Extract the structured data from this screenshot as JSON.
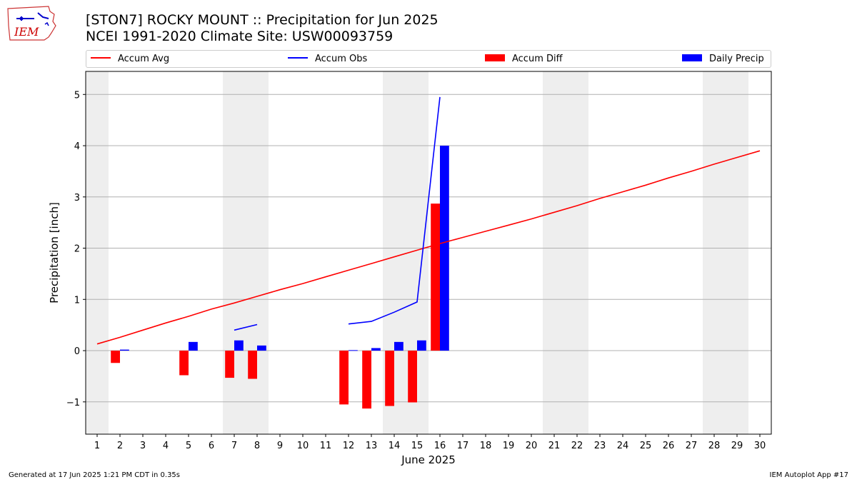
{
  "header": {
    "title_line1": "[STON7] ROCKY MOUNT :: Precipitation for Jun 2025",
    "title_line2": "NCEI 1991-2020 Climate Site: USW00093759",
    "logo_text": "IEM"
  },
  "legend": [
    {
      "label": "Accum Avg",
      "color": "#ff0000",
      "kind": "line"
    },
    {
      "label": "Accum Obs",
      "color": "#0000ff",
      "kind": "line"
    },
    {
      "label": "Accum Diff",
      "color": "#ff0000",
      "kind": "box"
    },
    {
      "label": "Daily Precip",
      "color": "#0000ff",
      "kind": "box"
    }
  ],
  "footer": {
    "generated": "Generated at 17 Jun 2025 1:21 PM CDT in 0.35s",
    "app": "IEM Autoplot App #17"
  },
  "colors": {
    "accum_avg": "#ff0000",
    "accum_obs": "#0000ff",
    "accum_diff": "#ff0000",
    "daily_precip": "#0000ff",
    "weekend_shade": "#eeeeee",
    "grid": "#b0b0b0"
  },
  "chart_data": {
    "type": "bar",
    "xlabel": "June 2025",
    "ylabel": "Precipitation [inch]",
    "x": [
      1,
      2,
      3,
      4,
      5,
      6,
      7,
      8,
      9,
      10,
      11,
      12,
      13,
      14,
      15,
      16,
      17,
      18,
      19,
      20,
      21,
      22,
      23,
      24,
      25,
      26,
      27,
      28,
      29,
      30
    ],
    "x_ticks": [
      "1",
      "2",
      "3",
      "4",
      "5",
      "6",
      "7",
      "8",
      "9",
      "10",
      "11",
      "12",
      "13",
      "14",
      "15",
      "16",
      "17",
      "18",
      "19",
      "20",
      "21",
      "22",
      "23",
      "24",
      "25",
      "26",
      "27",
      "28",
      "29",
      "30"
    ],
    "xlim": [
      0.5,
      30.5
    ],
    "ylim": [
      -1.63,
      5.45
    ],
    "y_ticks": [
      -1,
      0,
      1,
      2,
      3,
      4,
      5
    ],
    "y_tick_labels": [
      "−1",
      "0",
      "1",
      "2",
      "3",
      "4",
      "5"
    ],
    "grid": "y-major",
    "weekend_days": [
      1,
      7,
      8,
      14,
      15,
      21,
      22,
      28,
      29
    ],
    "series": [
      {
        "name": "Accum Avg",
        "type": "line",
        "values": [
          0.13,
          0.26,
          0.4,
          0.54,
          0.67,
          0.81,
          0.93,
          1.06,
          1.19,
          1.31,
          1.44,
          1.57,
          1.7,
          1.83,
          1.96,
          2.09,
          2.21,
          2.33,
          2.45,
          2.57,
          2.7,
          2.83,
          2.97,
          3.1,
          3.23,
          3.37,
          3.5,
          3.64,
          3.77,
          3.9
        ]
      },
      {
        "name": "Accum Obs",
        "type": "line",
        "values": [
          null,
          null,
          null,
          null,
          null,
          null,
          0.4,
          0.51,
          null,
          null,
          null,
          0.52,
          0.57,
          0.75,
          0.95,
          4.95,
          null,
          null,
          null,
          null,
          null,
          null,
          null,
          null,
          null,
          null,
          null,
          null,
          null,
          null
        ]
      },
      {
        "name": "Accum Diff",
        "type": "bar",
        "values": [
          0,
          -0.24,
          0,
          0,
          -0.48,
          0,
          -0.53,
          -0.55,
          0,
          0,
          0,
          -1.05,
          -1.13,
          -1.08,
          -1.01,
          2.87,
          0,
          0,
          0,
          0,
          0,
          0,
          0,
          0,
          0,
          0,
          0,
          0,
          0,
          0
        ]
      },
      {
        "name": "Daily Precip",
        "type": "bar",
        "values": [
          0,
          0.02,
          0,
          0,
          0.17,
          0,
          0.2,
          0.1,
          0,
          0,
          0,
          0.01,
          0.05,
          0.17,
          0.2,
          4.0,
          0,
          0,
          0,
          0,
          0,
          0,
          0,
          0,
          0,
          0,
          0,
          0,
          0,
          0
        ]
      }
    ]
  }
}
